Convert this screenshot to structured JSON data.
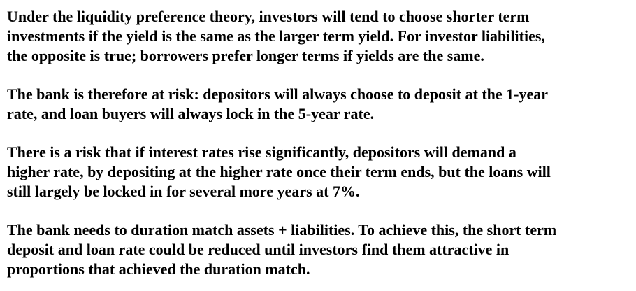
{
  "paragraphs": [
    {
      "lines": [
        "Under the liquidity preference theory, investors will tend to choose shorter term",
        "investments if the yield is the same as the larger term yield. For investor liabilities,",
        "the opposite is true; borrowers prefer longer terms if yields are the same."
      ]
    },
    {
      "lines": [
        "The bank is therefore at risk: depositors will always choose to deposit at the 1-year",
        "rate, and loan buyers will always lock in the 5-year rate."
      ]
    },
    {
      "lines": [
        "There is a risk that if interest rates rise significantly, depositors will demand a",
        "higher rate, by depositing at the higher rate once their term ends, but the loans will",
        "still largely be locked in for several more years at 7%."
      ]
    },
    {
      "lines": [
        "The bank needs to duration match assets + liabilities. To achieve this, the short term",
        "deposit and loan rate could be reduced until investors find them attractive in",
        "proportions that achieved the duration match."
      ]
    }
  ]
}
